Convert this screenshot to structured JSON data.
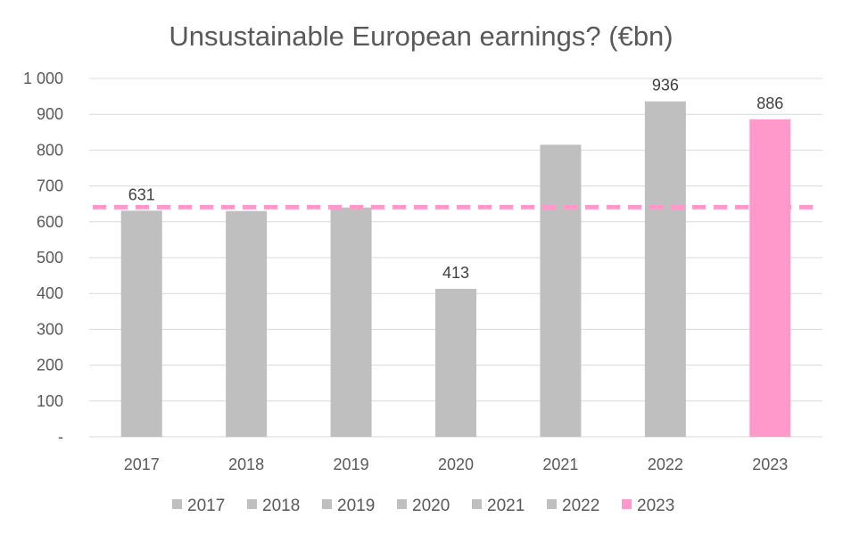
{
  "chart_data": {
    "type": "bar",
    "title": "Unsustainable European earnings? (€bn)",
    "categories": [
      "2017",
      "2018",
      "2019",
      "2020",
      "2021",
      "2022",
      "2023"
    ],
    "values": [
      631,
      630,
      640,
      413,
      815,
      936,
      886
    ],
    "data_labels": [
      "631",
      "",
      "",
      "413",
      "",
      "936",
      "886"
    ],
    "colors": [
      "#bfbfbf",
      "#bfbfbf",
      "#bfbfbf",
      "#bfbfbf",
      "#bfbfbf",
      "#bfbfbf",
      "#ff99cc"
    ],
    "ylim": [
      0,
      1000
    ],
    "y_ticks": [
      0,
      100,
      200,
      300,
      400,
      500,
      600,
      700,
      800,
      900,
      1000
    ],
    "y_tick_labels": [
      "-",
      "100",
      "200",
      "300",
      "400",
      "500",
      "600",
      "700",
      "800",
      "900",
      "1 000"
    ],
    "reference_line": {
      "value": 641,
      "style": "dashed",
      "color": "#ff99cc"
    },
    "grid": true,
    "legend": {
      "placement": "bottom",
      "entries": [
        "2017",
        "2018",
        "2019",
        "2020",
        "2021",
        "2022",
        "2023"
      ]
    },
    "xlabel": "",
    "ylabel": ""
  }
}
